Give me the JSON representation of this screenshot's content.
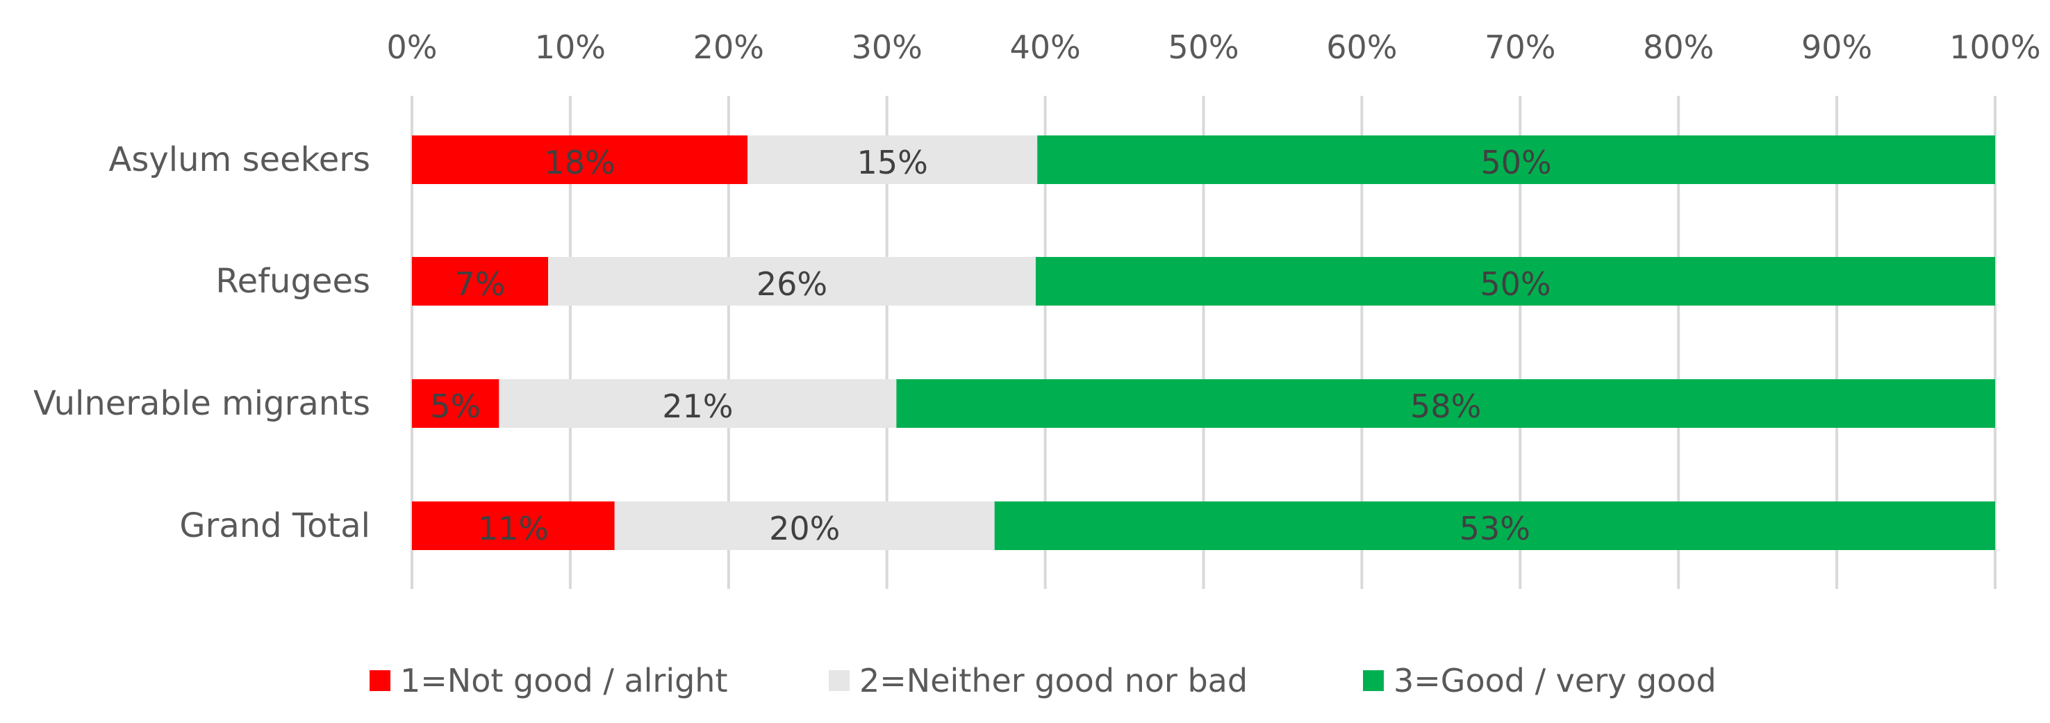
{
  "chart_data": {
    "type": "bar",
    "orientation": "horizontal",
    "stacked": true,
    "categories": [
      "Asylum seekers",
      "Refugees",
      "Vulnerable migrants",
      "Grand Total"
    ],
    "series": [
      {
        "name": "1=Not good / alright",
        "color": "#ff0000",
        "values": [
          18,
          7,
          5,
          11
        ],
        "data_labels": [
          "18%",
          "7%",
          "5%",
          "11%"
        ],
        "bar_extent": [
          21.2,
          8.6,
          5.5,
          12.8
        ]
      },
      {
        "name": "2=Neither good nor bad",
        "color": "#e6e6e6",
        "values": [
          15,
          26,
          21,
          20
        ],
        "data_labels": [
          "15%",
          "26%",
          "21%",
          "20%"
        ],
        "bar_extent": [
          18.3,
          30.8,
          25.1,
          24.0
        ]
      },
      {
        "name": "3=Good / very good",
        "color": "#00b050",
        "values": [
          50,
          50,
          58,
          53
        ],
        "data_labels": [
          "50%",
          "50%",
          "58%",
          "53%"
        ],
        "bar_extent": [
          60.5,
          60.6,
          69.4,
          63.2
        ]
      }
    ],
    "x_ticks": [
      "0%",
      "10%",
      "20%",
      "30%",
      "40%",
      "50%",
      "60%",
      "70%",
      "80%",
      "90%",
      "100%"
    ],
    "xlim": [
      0,
      100
    ],
    "x_axis_position": "top",
    "gridlines": true,
    "legend_position": "bottom",
    "title": "",
    "xlabel": "",
    "ylabel": ""
  }
}
